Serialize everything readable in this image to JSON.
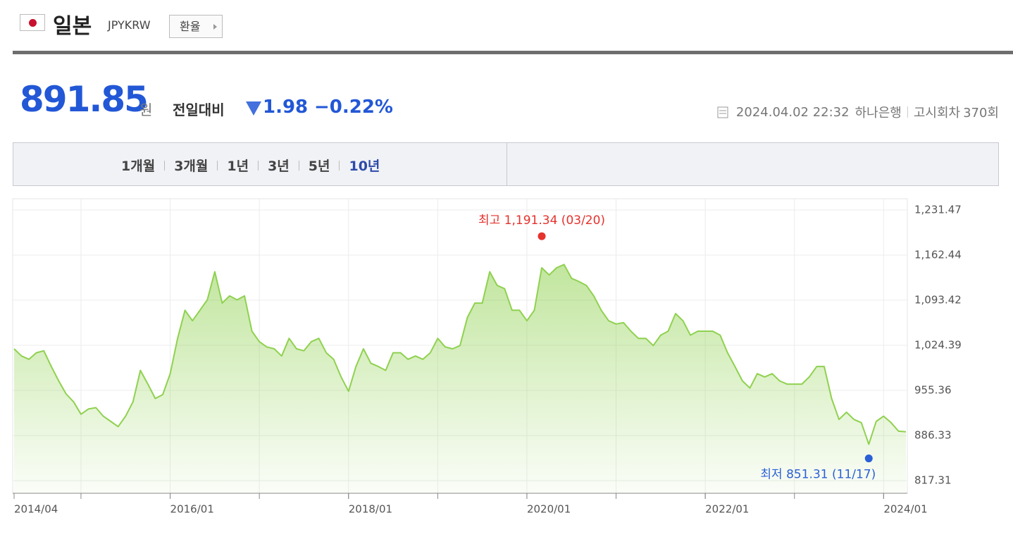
{
  "header": {
    "country": "일본",
    "code": "JPYKRW",
    "button": "환율"
  },
  "quote": {
    "price": 891.85,
    "unit": "원",
    "change_label": "전일대비",
    "change": 1.98,
    "change_percent": "−0.22%",
    "datetime": "2024.04.02 22:32",
    "bank": "하나은행",
    "notice_label": "고시회차",
    "notice_count": "370회"
  },
  "tabs": {
    "items": [
      "1개월",
      "3개월",
      "1년",
      "3년",
      "5년",
      "10년"
    ],
    "active": 5
  },
  "chart_data": {
    "type": "line",
    "x": [
      "2014/04",
      "2014/05",
      "2014/06",
      "2014/07",
      "2014/08",
      "2014/09",
      "2014/10",
      "2014/11",
      "2014/12",
      "2015/01",
      "2015/02",
      "2015/03",
      "2015/04",
      "2015/05",
      "2015/06",
      "2015/07",
      "2015/08",
      "2015/09",
      "2015/10",
      "2015/11",
      "2015/12",
      "2016/01",
      "2016/02",
      "2016/03",
      "2016/04",
      "2016/05",
      "2016/06",
      "2016/07",
      "2016/08",
      "2016/09",
      "2016/10",
      "2016/11",
      "2016/12",
      "2017/01",
      "2017/02",
      "2017/03",
      "2017/04",
      "2017/05",
      "2017/06",
      "2017/07",
      "2017/08",
      "2017/09",
      "2017/10",
      "2017/11",
      "2017/12",
      "2018/01",
      "2018/02",
      "2018/03",
      "2018/04",
      "2018/05",
      "2018/06",
      "2018/07",
      "2018/08",
      "2018/09",
      "2018/10",
      "2018/11",
      "2018/12",
      "2019/01",
      "2019/02",
      "2019/03",
      "2019/04",
      "2019/05",
      "2019/06",
      "2019/07",
      "2019/08",
      "2019/09",
      "2019/10",
      "2019/11",
      "2019/12",
      "2020/01",
      "2020/02",
      "2020/03",
      "2020/04",
      "2020/05",
      "2020/06",
      "2020/07",
      "2020/08",
      "2020/09",
      "2020/10",
      "2020/11",
      "2020/12",
      "2021/01",
      "2021/02",
      "2021/03",
      "2021/04",
      "2021/05",
      "2021/06",
      "2021/07",
      "2021/08",
      "2021/09",
      "2021/10",
      "2021/11",
      "2021/12",
      "2022/01",
      "2022/02",
      "2022/03",
      "2022/04",
      "2022/05",
      "2022/06",
      "2022/07",
      "2022/08",
      "2022/09",
      "2022/10",
      "2022/11",
      "2022/12",
      "2023/01",
      "2023/02",
      "2023/03",
      "2023/04",
      "2023/05",
      "2023/06",
      "2023/07",
      "2023/08",
      "2023/09",
      "2023/10",
      "2023/11",
      "2023/12",
      "2024/01",
      "2024/02",
      "2024/03",
      "2024/04"
    ],
    "series": [
      {
        "name": "JPYKRW",
        "color": "#8fd14f",
        "values": [
          1019,
          1008,
          1003,
          1013,
          1016,
          992,
          970,
          950,
          938,
          919,
          927,
          929,
          916,
          908,
          900,
          916,
          938,
          986,
          965,
          943,
          949,
          981,
          1035,
          1078,
          1062,
          1078,
          1094,
          1137,
          1089,
          1100,
          1094,
          1100,
          1046,
          1030,
          1022,
          1019,
          1008,
          1035,
          1019,
          1016,
          1030,
          1035,
          1013,
          1003,
          976,
          954,
          992,
          1019,
          997,
          992,
          986,
          1013,
          1013,
          1003,
          1008,
          1003,
          1013,
          1035,
          1022,
          1019,
          1024,
          1067,
          1089,
          1089,
          1137,
          1116,
          1111,
          1078,
          1078,
          1062,
          1078,
          1143,
          1132,
          1143,
          1148,
          1127,
          1122,
          1116,
          1100,
          1078,
          1062,
          1057,
          1059,
          1046,
          1035,
          1035,
          1024,
          1040,
          1046,
          1073,
          1062,
          1040,
          1046,
          1046,
          1046,
          1040,
          1013,
          992,
          970,
          959,
          981,
          976,
          981,
          970,
          965,
          965,
          965,
          976,
          992,
          992,
          943,
          911,
          922,
          911,
          906,
          873,
          908,
          916,
          906,
          893,
          892
        ]
      }
    ],
    "ylim": [
      798,
      1248.7
    ],
    "yticks": [
      817.31,
      {
        "value": 886.33,
        "label": "886.33"
      },
      {
        "value": 955.36,
        "label": "955.36"
      },
      {
        "value": 1024.39,
        "label": "1,024.39"
      },
      {
        "value": 1093.42,
        "label": "1,093.42"
      },
      {
        "value": 1162.44,
        "label": "1,162.44"
      },
      {
        "value": 1231.47,
        "label": "1,231.47"
      }
    ],
    "xticks": [
      "2014/04",
      "2016/01",
      "2018/01",
      "2020/01",
      "2022/01",
      "2024/01"
    ],
    "grid": true,
    "annotations": [
      {
        "text": "최고 1,191.34 (03/20)",
        "x": "2020/03",
        "value": 1191.34,
        "color": "#e5322d",
        "position": "above"
      },
      {
        "text": "최저 851.31 (11/17)",
        "x": "2023/11",
        "value": 851.31,
        "color": "#2a5fd6",
        "position": "below"
      }
    ]
  }
}
